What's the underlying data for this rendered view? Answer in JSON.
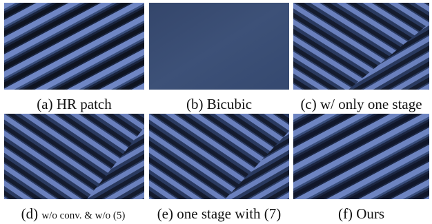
{
  "figure": {
    "panels": [
      {
        "id": "a",
        "caption": "(a) HR patch",
        "pattern": "diagonal-stripes"
      },
      {
        "id": "b",
        "caption": "(b) Bicubic",
        "pattern": "flat"
      },
      {
        "id": "c",
        "caption": "(c) w/ only one stage",
        "pattern": "herringbone"
      },
      {
        "id": "d",
        "caption_prefix": "(d) ",
        "caption_small": "w/o conv. & w/o (5)",
        "pattern": "herringbone"
      },
      {
        "id": "e",
        "caption": "(e) one stage with (7)",
        "pattern": "herringbone"
      },
      {
        "id": "f",
        "caption": "(f) Ours",
        "pattern": "diagonal-stripes"
      }
    ],
    "colors": {
      "stripe_light": "#6f86c4",
      "stripe_dark": "#0e1320",
      "stripe_mid": "#3a4f7e",
      "flat": "#3b4f75"
    }
  }
}
